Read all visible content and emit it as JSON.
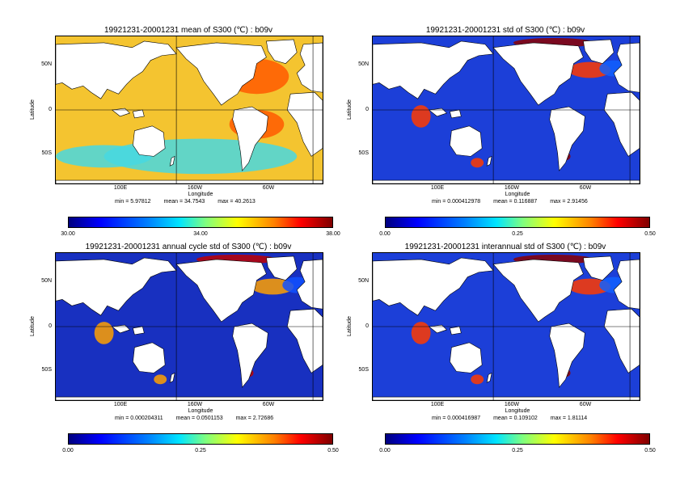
{
  "panels": [
    {
      "title": "19921231-20001231 mean of S300 (℃) : b09v",
      "ylabel": "Latitude",
      "xlabel": "Longitude",
      "yticks": [
        "50N",
        "0",
        "50S"
      ],
      "xticks": [
        "100E",
        "160W",
        "60W"
      ],
      "stats": {
        "min": "min = 5.97812",
        "mean": "mean = 34.7543",
        "max": "max = 40.2613"
      },
      "colorbar": [
        "30.00",
        "34.00",
        "38.00"
      ],
      "colors": {
        "ocean": "#f4c430",
        "warm": "#ff5a00",
        "cool": "#48d8e0",
        "hot": "#8b0000"
      }
    },
    {
      "title": "19921231-20001231 std of S300 (℃) : b09v",
      "ylabel": "Latitude",
      "xlabel": "Longitude",
      "yticks": [
        "50N",
        "0",
        "50S"
      ],
      "xticks": [
        "100E",
        "160W",
        "60W"
      ],
      "stats": {
        "min": "min = 0.000412978",
        "mean": "mean = 0.116887",
        "max": "max = 2.91456"
      },
      "colorbar": [
        "0.00",
        "0.25",
        "0.50"
      ],
      "colors": {
        "ocean": "#1c3fd8",
        "warm": "#ff3a00",
        "cool": "#1060ff",
        "hot": "#8b0000"
      }
    },
    {
      "title": "19921231-20001231 annual cycle std of S300 (℃) : b09v",
      "ylabel": "Latitude",
      "xlabel": "Longitude",
      "yticks": [
        "50N",
        "0",
        "50S"
      ],
      "xticks": [
        "100E",
        "160W",
        "60W"
      ],
      "stats": {
        "min": "min = 0.000204311",
        "mean": "mean = 0.0501153",
        "max": "max = 2.72686"
      },
      "colorbar": [
        "0.00",
        "0.25",
        "0.50"
      ],
      "colors": {
        "ocean": "#1830c0",
        "warm": "#ffa000",
        "cool": "#1050ff",
        "hot": "#c00000"
      }
    },
    {
      "title": "19921231-20001231 interannual std of S300 (℃) : b09v",
      "ylabel": "Latitude",
      "xlabel": "Longitude",
      "yticks": [
        "50N",
        "0",
        "50S"
      ],
      "xticks": [
        "100E",
        "160W",
        "60W"
      ],
      "stats": {
        "min": "min = 0.000416987",
        "mean": "mean = 0.109102",
        "max": "max = 1.81114"
      },
      "colorbar": [
        "0.00",
        "0.25",
        "0.50"
      ],
      "colors": {
        "ocean": "#1c3fd8",
        "warm": "#ff3a00",
        "cool": "#1060ff",
        "hot": "#8b0000"
      }
    }
  ]
}
